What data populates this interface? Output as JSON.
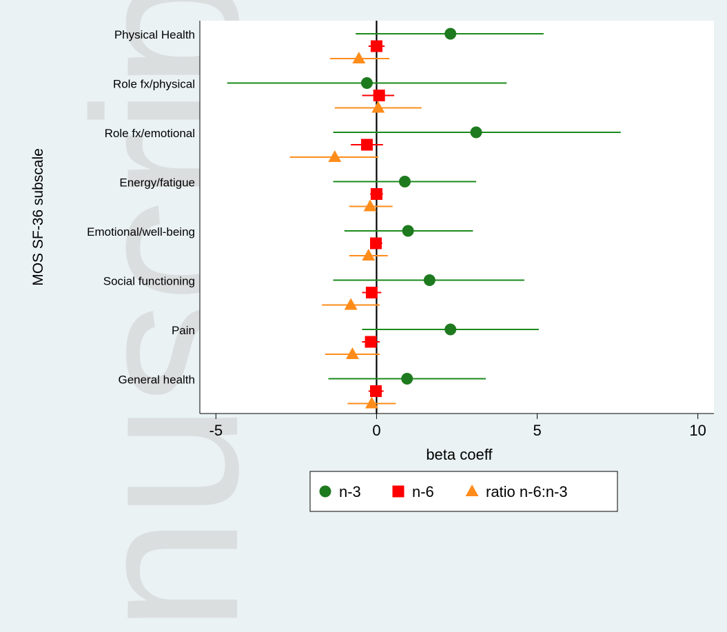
{
  "watermark_text": "nuscript",
  "colors": {
    "n3": "#1a8a1a",
    "n6": "#ff0000",
    "ratio": "#ff8c1a",
    "n3_marker": "#1e7a1e"
  },
  "chart_data": {
    "type": "scatter",
    "xlabel": "beta coeff",
    "ylabel": "MOS SF-36 subscale",
    "xlim": [
      -5.5,
      10.5
    ],
    "xticks": [
      -5,
      0,
      5,
      10
    ],
    "xtick_labels": [
      "-5",
      "0",
      "5",
      "10"
    ],
    "categories": [
      "Physical Health",
      "Role fx/physical",
      "Role fx/emotional",
      "Energy/fatigue",
      "Emotional/well-being",
      "Social functioning",
      "Pain",
      "General health"
    ],
    "series": [
      {
        "name": "n-3",
        "marker": "circle",
        "color": "#1a8a1a",
        "points": [
          {
            "est": 2.3,
            "lo": -0.65,
            "hi": 5.2
          },
          {
            "est": -0.3,
            "lo": -4.65,
            "hi": 4.05
          },
          {
            "est": 3.1,
            "lo": -1.35,
            "hi": 7.6
          },
          {
            "est": 0.88,
            "lo": -1.35,
            "hi": 3.1
          },
          {
            "est": 0.98,
            "lo": -1.0,
            "hi": 3.0
          },
          {
            "est": 1.65,
            "lo": -1.35,
            "hi": 4.6
          },
          {
            "est": 2.3,
            "lo": -0.45,
            "hi": 5.05
          },
          {
            "est": 0.95,
            "lo": -1.5,
            "hi": 3.4
          }
        ]
      },
      {
        "name": "n-6",
        "marker": "square",
        "color": "#ff0000",
        "points": [
          {
            "est": 0.0,
            "lo": -0.25,
            "hi": 0.25
          },
          {
            "est": 0.08,
            "lo": -0.45,
            "hi": 0.55
          },
          {
            "est": -0.3,
            "lo": -0.8,
            "hi": 0.2
          },
          {
            "est": 0.0,
            "lo": -0.2,
            "hi": 0.2
          },
          {
            "est": -0.02,
            "lo": -0.2,
            "hi": 0.18
          },
          {
            "est": -0.15,
            "lo": -0.45,
            "hi": 0.15
          },
          {
            "est": -0.18,
            "lo": -0.45,
            "hi": 0.1
          },
          {
            "est": -0.02,
            "lo": -0.25,
            "hi": 0.22
          }
        ]
      },
      {
        "name": "ratio n-6:n-3",
        "marker": "triangle",
        "color": "#ff8c1a",
        "points": [
          {
            "est": -0.55,
            "lo": -1.45,
            "hi": 0.4
          },
          {
            "est": 0.05,
            "lo": -1.3,
            "hi": 1.4
          },
          {
            "est": -1.3,
            "lo": -2.7,
            "hi": 0.05
          },
          {
            "est": -0.2,
            "lo": -0.85,
            "hi": 0.5
          },
          {
            "est": -0.25,
            "lo": -0.85,
            "hi": 0.35
          },
          {
            "est": -0.8,
            "lo": -1.7,
            "hi": 0.1
          },
          {
            "est": -0.75,
            "lo": -1.6,
            "hi": 0.1
          },
          {
            "est": -0.15,
            "lo": -0.9,
            "hi": 0.6
          }
        ]
      }
    ],
    "legend": {
      "placement": "bottom",
      "entries": [
        "n-3",
        "n-6",
        "ratio n-6:n-3"
      ]
    }
  }
}
